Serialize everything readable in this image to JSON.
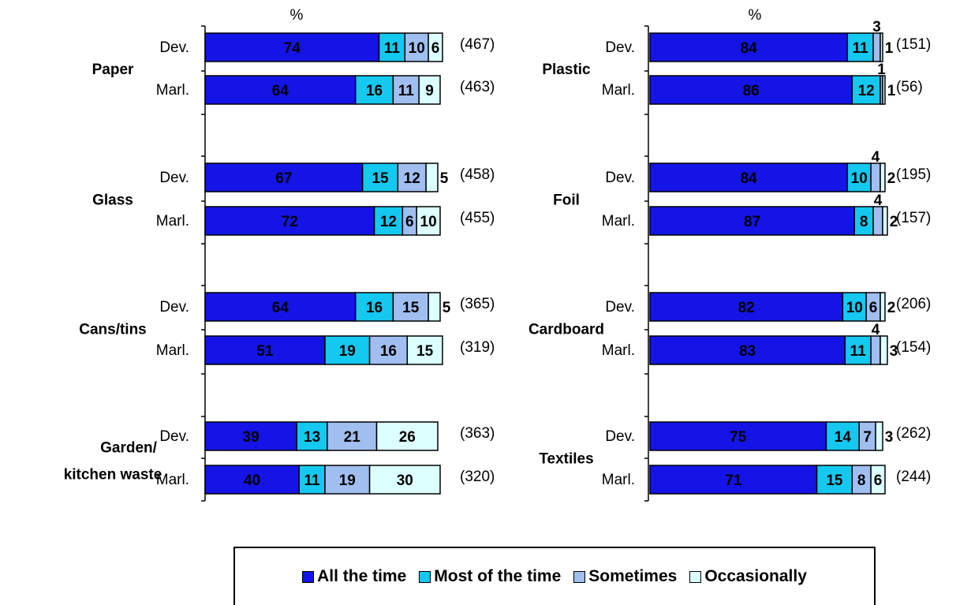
{
  "colors": {
    "all_the_time": "#1414E6",
    "most_of_the_time": "#14C8F0",
    "sometimes": "#A0BEF0",
    "occasionally": "#DCFFFF"
  },
  "legend": [
    {
      "key": "all_the_time",
      "label": "All the time"
    },
    {
      "key": "most_of_the_time",
      "label": "Most of the time"
    },
    {
      "key": "sometimes",
      "label": "Sometimes"
    },
    {
      "key": "occasionally",
      "label": "Occasionally"
    }
  ],
  "chart_data": [
    {
      "type": "bar",
      "orientation": "horizontal",
      "stacked": true,
      "unit_label": "%",
      "xlim": [
        0,
        100
      ],
      "series": [
        "All the time",
        "Most of the time",
        "Sometimes",
        "Occasionally"
      ],
      "groups": [
        {
          "name": "Paper",
          "rows": [
            {
              "label": "Dev.",
              "values": [
                74,
                11,
                10,
                6
              ],
              "n": "(467)"
            },
            {
              "label": "Marl.",
              "values": [
                64,
                16,
                11,
                9
              ],
              "n": "(463)"
            }
          ]
        },
        {
          "name": "Glass",
          "rows": [
            {
              "label": "Dev.",
              "values": [
                67,
                15,
                12,
                5
              ],
              "n": "(458)"
            },
            {
              "label": "Marl.",
              "values": [
                72,
                12,
                6,
                10
              ],
              "n": "(455)"
            }
          ]
        },
        {
          "name": "Cans/tins",
          "rows": [
            {
              "label": "Dev.",
              "values": [
                64,
                16,
                15,
                5
              ],
              "n": "(365)"
            },
            {
              "label": "Marl.",
              "values": [
                51,
                19,
                16,
                15
              ],
              "n": "(319)"
            }
          ]
        },
        {
          "name": "Garden/ kitchen waste",
          "name_lines": [
            "Garden/",
            "kitchen waste"
          ],
          "rows": [
            {
              "label": "Dev.",
              "values": [
                39,
                13,
                21,
                26
              ],
              "n": "(363)"
            },
            {
              "label": "Marl.",
              "values": [
                40,
                11,
                19,
                30
              ],
              "n": "(320)"
            }
          ]
        }
      ]
    },
    {
      "type": "bar",
      "orientation": "horizontal",
      "stacked": true,
      "unit_label": "%",
      "xlim": [
        0,
        100
      ],
      "series": [
        "All the time",
        "Most of the time",
        "Sometimes",
        "Occasionally"
      ],
      "groups": [
        {
          "name": "Plastic",
          "rows": [
            {
              "label": "Dev.",
              "values": [
                84,
                11,
                3,
                1
              ],
              "n": "(151)"
            },
            {
              "label": "Marl.",
              "values": [
                86,
                12,
                1,
                1
              ],
              "n": "(56)"
            }
          ]
        },
        {
          "name": "Foil",
          "rows": [
            {
              "label": "Dev.",
              "values": [
                84,
                10,
                4,
                2
              ],
              "n": "(195)"
            },
            {
              "label": "Marl.",
              "values": [
                87,
                8,
                4,
                2
              ],
              "n": "(157)"
            }
          ]
        },
        {
          "name": "Cardboard",
          "rows": [
            {
              "label": "Dev.",
              "values": [
                82,
                10,
                6,
                2
              ],
              "n": "(206)"
            },
            {
              "label": "Marl.",
              "values": [
                83,
                11,
                4,
                3
              ],
              "n": "(154)"
            }
          ]
        },
        {
          "name": "Textiles",
          "rows": [
            {
              "label": "Dev.",
              "values": [
                75,
                14,
                7,
                3
              ],
              "n": "(262)"
            },
            {
              "label": "Marl.",
              "values": [
                71,
                15,
                8,
                6
              ],
              "n": "(244)"
            }
          ]
        }
      ]
    }
  ]
}
